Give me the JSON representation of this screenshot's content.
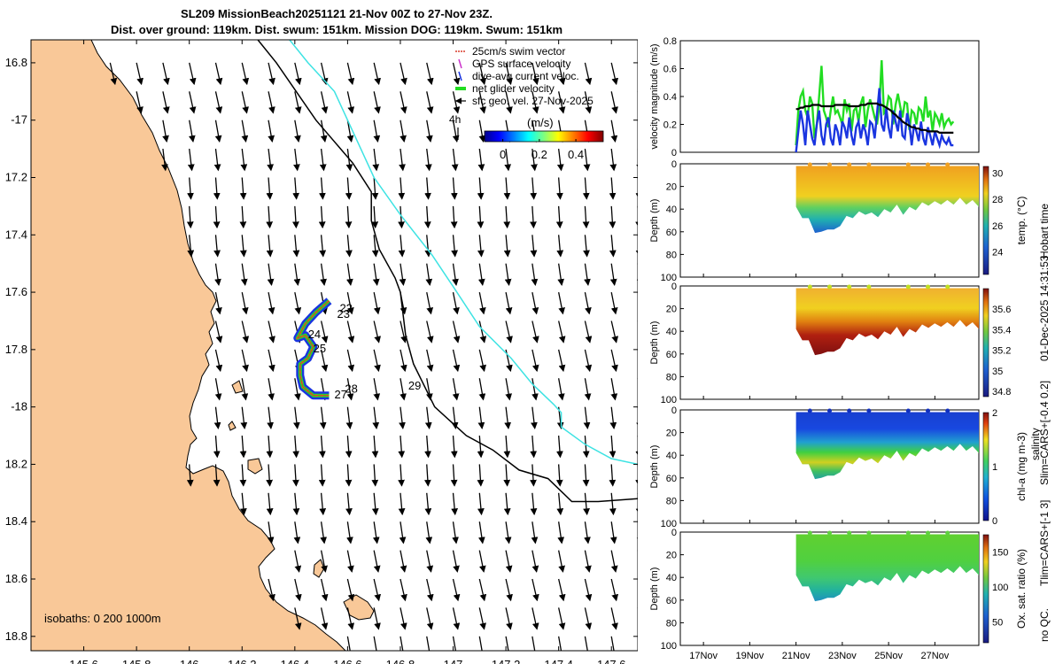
{
  "title": {
    "line1": "SL209 MissionBeach20251121 21-Nov 00Z to 27-Nov 23Z.",
    "line2": "Dist. over ground: 119km. Dist. swum: 151km. Mission DOG: 119km. Swum: 151km"
  },
  "right_side_text": {
    "line1": "salinity",
    "line2": "Hobart time",
    "line3": "01-Dec-2025 14:31:53",
    "line4": "Slim=CARS+[-0.4 0.2]",
    "line5": "Tlim=CARS+[-1 3]",
    "line6": "no QC."
  },
  "colors": {
    "land": "#f9c898",
    "contour": "#000000",
    "isobath_deep": "#3ee3e3",
    "swim": "#d93a2a",
    "gps": "#cc33cc",
    "dive_avg": "#1a35e0",
    "net_glider": "#22dd22",
    "sfc_geo": "#000000"
  },
  "chart_data": [
    {
      "type": "map",
      "name": "track-map",
      "xlim": [
        145.4,
        147.7
      ],
      "ylim": [
        -18.85,
        -16.72
      ],
      "xticks": [
        145.6,
        145.8,
        146,
        146.2,
        146.4,
        146.6,
        146.8,
        147,
        147.2,
        147.4,
        147.6
      ],
      "yticks": [
        -16.8,
        -17,
        -17.2,
        -17.4,
        -17.6,
        -17.8,
        -18,
        -18.2,
        -18.4,
        -18.6,
        -18.8
      ],
      "xticklabels": [
        "145.6",
        "145.8",
        "146",
        "146.2",
        "146.4",
        "146.6",
        "146.8",
        "147",
        "147.2",
        "147.4",
        "147.6"
      ],
      "yticklabels": [
        "16.8",
        "-17",
        "17.2",
        "17.4",
        "17.6",
        "17.8",
        "-18",
        "18.2",
        "18.4",
        "18.6",
        "18.8"
      ],
      "legend": [
        {
          "label": "25cm/s swim vector",
          "kind": "swim"
        },
        {
          "label": "GPS surface velocity",
          "kind": "gps"
        },
        {
          "label": "dive-avg current veloc.",
          "kind": "dive_avg"
        },
        {
          "label": "net glider velocity",
          "kind": "net_glider"
        },
        {
          "label": "sfc geo. vel. 27-Nov-2025",
          "kind": "sfc_geo"
        }
      ],
      "scale_arrow_label": "4h",
      "colorbar": {
        "label": "(m/s)",
        "range": [
          -0.1,
          0.55
        ],
        "ticks": [
          0,
          0.2,
          0.4
        ],
        "ticklabels": [
          "0",
          "0.2",
          "0.4"
        ]
      },
      "isobaths_note": "isobaths: 0   200  1000m",
      "isobath_200": [
        [
          146.26,
          -16.72
        ],
        [
          146.33,
          -16.8
        ],
        [
          146.48,
          -17.0
        ],
        [
          146.62,
          -17.15
        ],
        [
          146.69,
          -17.25
        ],
        [
          146.69,
          -17.35
        ],
        [
          146.72,
          -17.45
        ],
        [
          146.78,
          -17.55
        ],
        [
          146.8,
          -17.6
        ],
        [
          146.82,
          -17.75
        ],
        [
          146.85,
          -17.85
        ],
        [
          146.93,
          -18.0
        ],
        [
          147.05,
          -18.1
        ],
        [
          147.15,
          -18.15
        ],
        [
          147.25,
          -18.22
        ],
        [
          147.36,
          -18.25
        ],
        [
          147.45,
          -18.33
        ],
        [
          147.55,
          -18.33
        ],
        [
          147.7,
          -18.32
        ]
      ],
      "isobath_1000": [
        [
          146.38,
          -16.72
        ],
        [
          146.45,
          -16.8
        ],
        [
          146.55,
          -16.9
        ],
        [
          146.65,
          -17.1
        ],
        [
          146.7,
          -17.2
        ],
        [
          146.8,
          -17.33
        ],
        [
          146.92,
          -17.47
        ],
        [
          147.0,
          -17.58
        ],
        [
          147.1,
          -17.72
        ],
        [
          147.22,
          -17.83
        ],
        [
          147.3,
          -17.92
        ],
        [
          147.38,
          -17.99
        ],
        [
          147.41,
          -18.02
        ],
        [
          147.41,
          -18.07
        ],
        [
          147.5,
          -18.13
        ],
        [
          147.6,
          -18.18
        ],
        [
          147.7,
          -18.2
        ]
      ],
      "glider_track": [
        [
          146.53,
          -17.63
        ],
        [
          146.48,
          -17.67
        ],
        [
          146.44,
          -17.71
        ],
        [
          146.41,
          -17.76
        ],
        [
          146.44,
          -17.75
        ],
        [
          146.47,
          -17.79
        ],
        [
          146.45,
          -17.83
        ],
        [
          146.42,
          -17.85
        ],
        [
          146.42,
          -17.89
        ],
        [
          146.43,
          -17.93
        ],
        [
          146.47,
          -17.96
        ],
        [
          146.53,
          -17.96
        ]
      ],
      "day_labels": [
        {
          "text": "22",
          "x": 146.57,
          "y": -17.67
        },
        {
          "text": "23",
          "x": 146.56,
          "y": -17.69
        },
        {
          "text": "24",
          "x": 146.45,
          "y": -17.76
        },
        {
          "text": "25",
          "x": 146.47,
          "y": -17.81
        },
        {
          "text": "27",
          "x": 146.55,
          "y": -17.97
        },
        {
          "text": "28",
          "x": 146.59,
          "y": -17.95
        },
        {
          "text": "29",
          "x": 146.83,
          "y": -17.94
        }
      ],
      "current_vector": {
        "u": 0.05,
        "v": -0.24
      }
    },
    {
      "type": "line",
      "name": "velocity-panel",
      "ylabel": "velocity magnitude (m/s)",
      "ylim": [
        0,
        0.8
      ],
      "yticks": [
        0,
        0.2,
        0.4,
        0.6,
        0.8
      ],
      "x": [
        0,
        0.1,
        0.2,
        0.3,
        0.4,
        0.5,
        0.6,
        0.7,
        0.8,
        0.9,
        1.0,
        1.1,
        1.2,
        1.3,
        1.4,
        1.5,
        1.6,
        1.7,
        1.8,
        1.9,
        2.0,
        2.1,
        2.2,
        2.3,
        2.4,
        2.5,
        2.6,
        2.7,
        2.8,
        2.9,
        3.0,
        3.1,
        3.2,
        3.3,
        3.4,
        3.5,
        3.6,
        3.7,
        3.8,
        3.9,
        4.0,
        4.1,
        4.2,
        4.3,
        4.4,
        4.5,
        4.6,
        4.7,
        4.8,
        4.9,
        5.0,
        5.1,
        5.2,
        5.3,
        5.4,
        5.5,
        5.6,
        5.7,
        5.8,
        5.9,
        6.0,
        6.1,
        6.2,
        6.3,
        6.4,
        6.5,
        6.6,
        6.7,
        6.8
      ],
      "series": [
        {
          "name": "net glider velocity",
          "color": "#22dd22",
          "values": [
            0.05,
            0.3,
            0.4,
            0.44,
            0.3,
            0.25,
            0.4,
            0.35,
            0.1,
            0.2,
            0.4,
            0.62,
            0.3,
            0.25,
            0.18,
            0.3,
            0.4,
            0.28,
            0.3,
            0.25,
            0.2,
            0.38,
            0.3,
            0.35,
            0.15,
            0.3,
            0.32,
            0.22,
            0.35,
            0.4,
            0.18,
            0.3,
            0.38,
            0.32,
            0.25,
            0.2,
            0.34,
            0.66,
            0.28,
            0.3,
            0.4,
            0.38,
            0.2,
            0.34,
            0.42,
            0.33,
            0.25,
            0.36,
            0.35,
            0.16,
            0.3,
            0.28,
            0.2,
            0.32,
            0.3,
            0.22,
            0.4,
            0.25,
            0.3,
            0.15,
            0.28,
            0.25,
            0.2,
            0.28,
            0.18,
            0.22,
            0.24,
            0.2,
            0.22
          ]
        },
        {
          "name": "dive-avg current veloc.",
          "color": "#1a35e0",
          "values": [
            0.0,
            0.15,
            0.3,
            0.2,
            0.05,
            0.3,
            0.2,
            0.1,
            0.05,
            0.2,
            0.3,
            0.12,
            0.05,
            0.2,
            0.25,
            0.1,
            0.05,
            0.2,
            0.15,
            0.05,
            0.22,
            0.18,
            0.1,
            0.25,
            0.12,
            0.05,
            0.18,
            0.22,
            0.1,
            0.2,
            0.15,
            0.05,
            0.22,
            0.2,
            0.1,
            0.28,
            0.46,
            0.2,
            0.15,
            0.32,
            0.18,
            0.1,
            0.3,
            0.22,
            0.15,
            0.3,
            0.12,
            0.1,
            0.28,
            0.2,
            0.05,
            0.2,
            0.15,
            0.08,
            0.22,
            0.1,
            0.05,
            0.18,
            0.12,
            0.05,
            0.15,
            0.1,
            0.05,
            0.12,
            0.08,
            0.06,
            0.1,
            0.05,
            0.05
          ]
        },
        {
          "name": "sfc geo. vel.",
          "color": "#000000",
          "values": [
            0.31,
            0.31,
            0.32,
            0.32,
            0.33,
            0.33,
            0.33,
            0.34,
            0.34,
            0.34,
            0.34,
            0.33,
            0.33,
            0.33,
            0.33,
            0.33,
            0.33,
            0.34,
            0.34,
            0.34,
            0.34,
            0.34,
            0.34,
            0.33,
            0.33,
            0.33,
            0.33,
            0.33,
            0.34,
            0.34,
            0.34,
            0.35,
            0.35,
            0.35,
            0.35,
            0.35,
            0.34,
            0.34,
            0.33,
            0.32,
            0.31,
            0.3,
            0.28,
            0.27,
            0.25,
            0.24,
            0.22,
            0.21,
            0.2,
            0.19,
            0.18,
            0.18,
            0.17,
            0.17,
            0.16,
            0.16,
            0.16,
            0.15,
            0.15,
            0.15,
            0.15,
            0.15,
            0.14,
            0.14,
            0.14,
            0.14,
            0.14,
            0.14,
            0.14
          ]
        }
      ]
    },
    {
      "type": "heatmap",
      "name": "section-panels",
      "ylim": [
        0,
        100
      ],
      "yticks": [
        0,
        20,
        40,
        60,
        80,
        100
      ],
      "ylabel": "Depth (m)",
      "xlim": [
        16,
        28.9
      ],
      "xticks": [
        17,
        19,
        21,
        23,
        25,
        27
      ],
      "xticklabels": [
        "17Nov",
        "19Nov",
        "21Nov",
        "23Nov",
        "25Nov",
        "27Nov"
      ],
      "data_start_day": 21.0,
      "data_end_day": 28.9,
      "max_depth_profile": [
        40,
        45,
        50,
        58,
        62,
        55,
        60,
        52,
        48,
        45,
        44,
        42,
        45,
        44,
        42,
        40,
        38,
        42,
        40,
        38,
        36,
        34,
        35,
        33,
        34,
        33,
        32,
        33,
        34,
        35
      ],
      "panels": [
        {
          "name": "temperature",
          "label": "temp. (°C)",
          "colormap": "parula",
          "clim": [
            22.3,
            30.5
          ],
          "ticks": [
            24,
            26,
            28,
            30
          ],
          "ticklabels": [
            "24",
            "26",
            "28",
            "30"
          ],
          "description": "warm 28-29 upper 30 m, cooling to about 24-26 near bottom"
        },
        {
          "name": "salinity",
          "label": "",
          "colormap": "parula",
          "clim": [
            34.75,
            35.8
          ],
          "ticks": [
            34.8,
            35,
            35.2,
            35.4,
            35.6
          ],
          "ticklabels": [
            "34.8",
            "35",
            "35.2",
            "35.4",
            "35.6"
          ],
          "description": "upper layer about 35.5, saltier above 35.6 at depth"
        },
        {
          "name": "chlorophyll",
          "label": "chl-a (mg m-3)",
          "colormap": "parula",
          "clim": [
            0,
            2
          ],
          "ticks": [
            0,
            1,
            2
          ],
          "ticklabels": [
            "0",
            "1",
            "2"
          ],
          "description": "low chl near surface, subsurface max around 35-45 m"
        },
        {
          "name": "oxygen",
          "label": "Ox. sat. ratio (%)",
          "colormap": "parula",
          "clim": [
            20,
            175
          ],
          "ticks": [
            50,
            100,
            150
          ],
          "ticklabels": [
            "50",
            "100",
            "150"
          ],
          "description": "about 130 in upper layer, about 100 near bottom"
        }
      ]
    }
  ]
}
